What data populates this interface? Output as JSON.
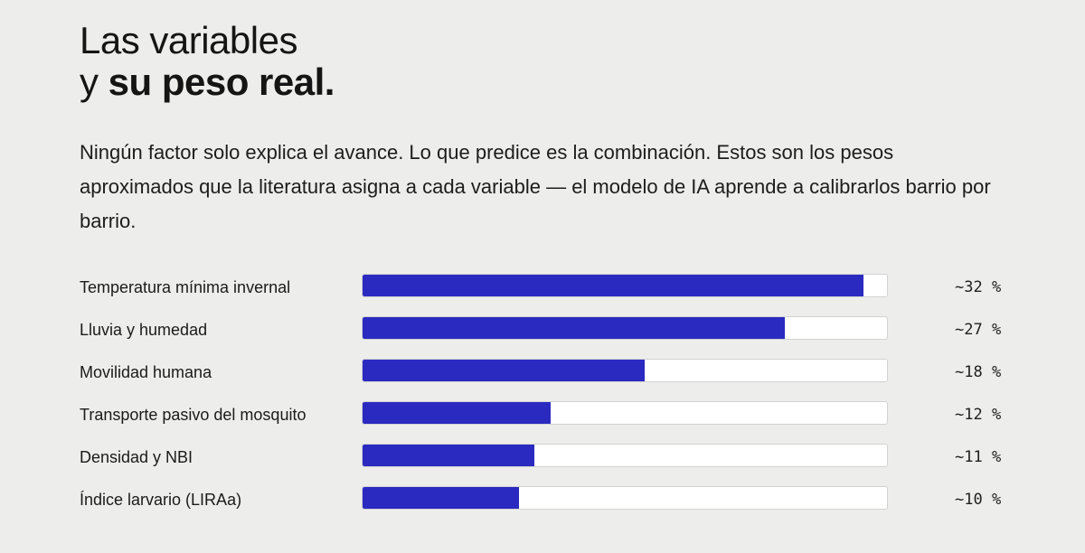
{
  "heading": {
    "line1": "Las variables",
    "line2_prefix": "y ",
    "line2_strong": "su peso real."
  },
  "intro": "Ningún factor solo explica el avance. Lo que predice es la combinación. Estos son los pesos aproximados que la literatura asigna a cada variable — el modelo de IA aprende a calibrarlos barrio por barrio.",
  "colors": {
    "background": "#ededeb",
    "bar": "#2b2ac0",
    "track": "#ffffff"
  },
  "chart_data": {
    "type": "bar",
    "orientation": "horizontal",
    "title": "",
    "xlabel": "",
    "ylabel": "",
    "xlim": [
      0,
      33.5
    ],
    "grid": false,
    "categories": [
      "Temperatura mínima invernal",
      "Lluvia y humedad",
      "Movilidad humana",
      "Transporte pasivo del mosquito",
      "Densidad y NBI",
      "Índice larvario (LIRAa)"
    ],
    "values": [
      32,
      27,
      18,
      12,
      11,
      10
    ],
    "value_labels": [
      "~32 %",
      "~27 %",
      "~18 %",
      "~12 %",
      "~11 %",
      "~10 %"
    ]
  }
}
